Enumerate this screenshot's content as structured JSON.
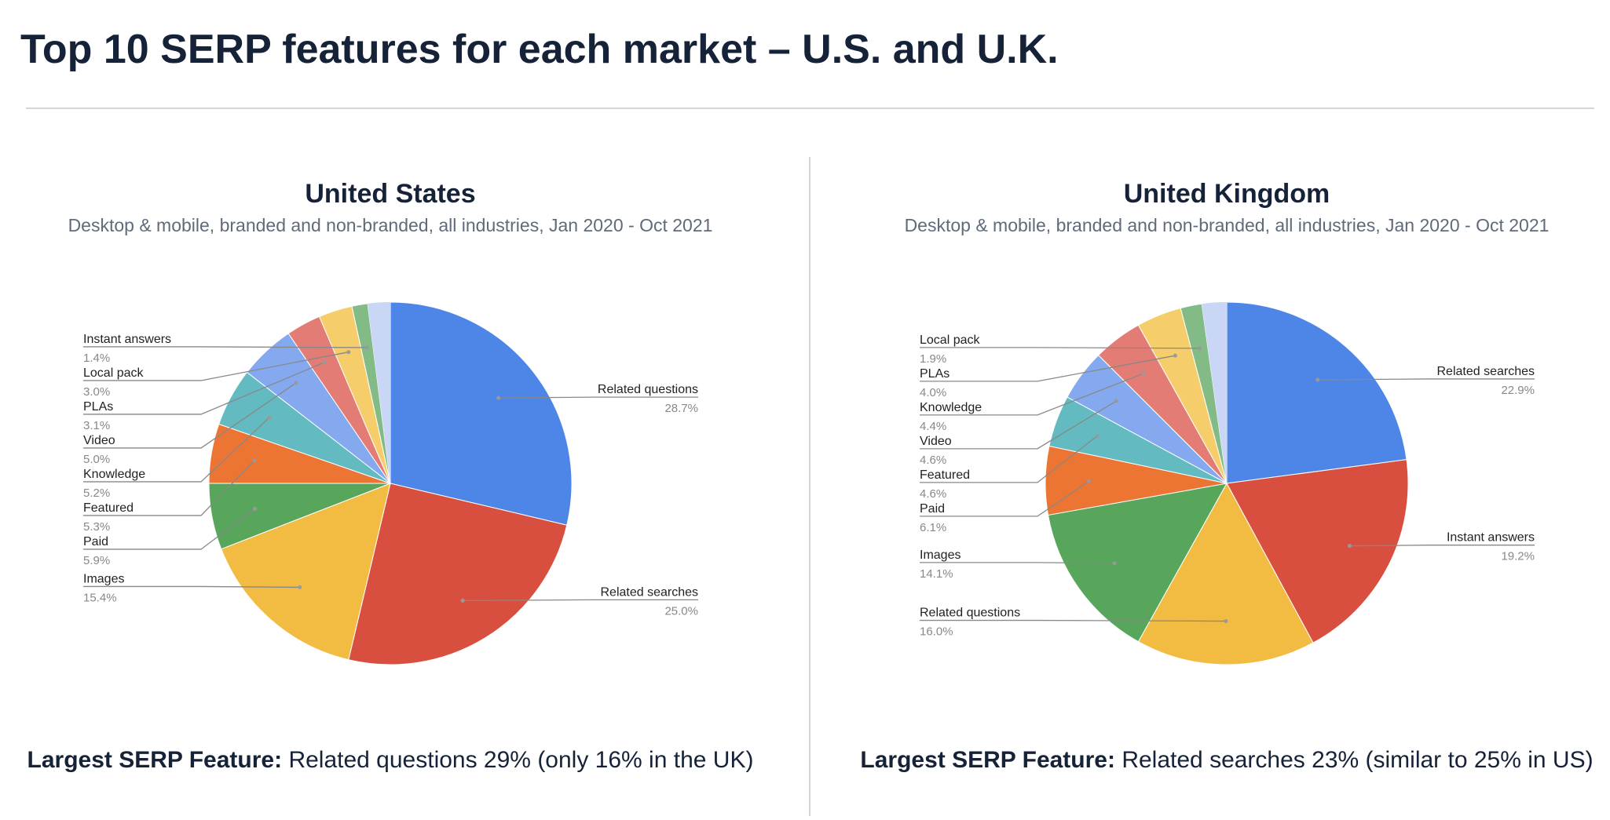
{
  "header": {
    "title": "Top 10 SERP features for each market – U.S. and U.K."
  },
  "chart_data": [
    {
      "type": "pie",
      "title": "United States",
      "subtitle": "Desktop & mobile, branded and non-branded, all industries, Jan 2020 - Oct 2021",
      "categories": [
        "Related questions",
        "Related searches",
        "Images",
        "Paid",
        "Featured",
        "Knowledge",
        "Video",
        "PLAs",
        "Local pack",
        "Instant answers"
      ],
      "values": [
        28.7,
        25.0,
        15.4,
        5.9,
        5.3,
        5.2,
        5.0,
        3.1,
        3.0,
        1.4
      ],
      "value_labels": [
        "28.7%",
        "25.0%",
        "15.4%",
        "5.9%",
        "5.3%",
        "5.2%",
        "5.0%",
        "3.1%",
        "3.0%",
        "1.4%"
      ],
      "colors": [
        "#4e86e8",
        "#d94f3f",
        "#f2bc42",
        "#58a65c",
        "#ec7533",
        "#63bac0",
        "#84a9ef",
        "#e27c74",
        "#f5ce6b",
        "#82bb85"
      ],
      "footnote_label": "Largest SERP Feature:",
      "footnote": "Related questions 29% (only 16% in the UK)"
    },
    {
      "type": "pie",
      "title": "United Kingdom",
      "subtitle": "Desktop & mobile, branded and non-branded, all industries, Jan 2020 - Oct 2021",
      "categories": [
        "Related searches",
        "Instant answers",
        "Related questions",
        "Images",
        "Paid",
        "Featured",
        "Video",
        "Knowledge",
        "PLAs",
        "Local pack"
      ],
      "values": [
        22.9,
        19.2,
        16.0,
        14.1,
        6.1,
        4.6,
        4.6,
        4.4,
        4.0,
        1.9
      ],
      "value_labels": [
        "22.9%",
        "19.2%",
        "16.0%",
        "14.1%",
        "6.1%",
        "4.6%",
        "4.6%",
        "4.4%",
        "4.0%",
        "1.9%"
      ],
      "colors": [
        "#4e86e8",
        "#d94f3f",
        "#f2bc42",
        "#58a65c",
        "#ec7533",
        "#63bac0",
        "#84a9ef",
        "#e27c74",
        "#f5ce6b",
        "#82bb85"
      ],
      "footnote_label": "Largest SERP Feature:",
      "footnote": "Related searches 23% (similar to 25% in US)"
    }
  ]
}
